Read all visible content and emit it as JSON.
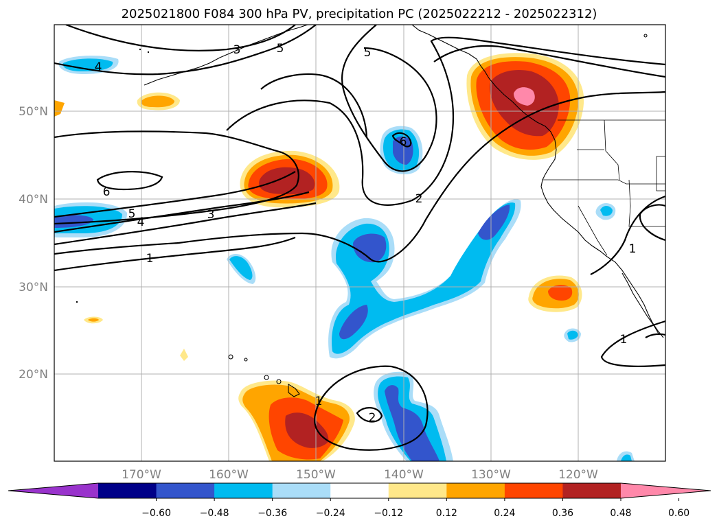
{
  "title": "2025021800 F084 300 hPa PV, precipitation PC (2025022212 - 2025022312)",
  "axes": {
    "lat_labels": [
      "50°N",
      "40°N",
      "30°N",
      "20°N"
    ],
    "lon_labels": [
      "170°W",
      "160°W",
      "150°W",
      "140°W",
      "130°W",
      "120°W"
    ]
  },
  "colorbar": {
    "colors": [
      "#9933cc",
      "#000088",
      "#3355cc",
      "#00bbf0",
      "#aaddf8",
      "#ffffff",
      "#ffe88a",
      "#ffa500",
      "#ff4500",
      "#b22222",
      "#ff88aa"
    ],
    "tick_labels": [
      "−0.60",
      "−0.48",
      "−0.36",
      "−0.24",
      "−0.12",
      "0.12",
      "0.24",
      "0.36",
      "0.48",
      "0.60"
    ]
  },
  "contour_labels": [
    "4",
    "3",
    "5",
    "5",
    "6",
    "6",
    "5",
    "4",
    "3",
    "1",
    "2",
    "1",
    "1",
    "1",
    "2"
  ],
  "fill_colors": {
    "pos_light": "#ffe88a",
    "pos_orange": "#ffa500",
    "pos_red": "#ff4500",
    "pos_dark": "#b22222",
    "pos_pink": "#ff88aa",
    "neg_light": "#aaddf8",
    "neg_cyan": "#00bbf0",
    "neg_blue": "#3355cc"
  }
}
